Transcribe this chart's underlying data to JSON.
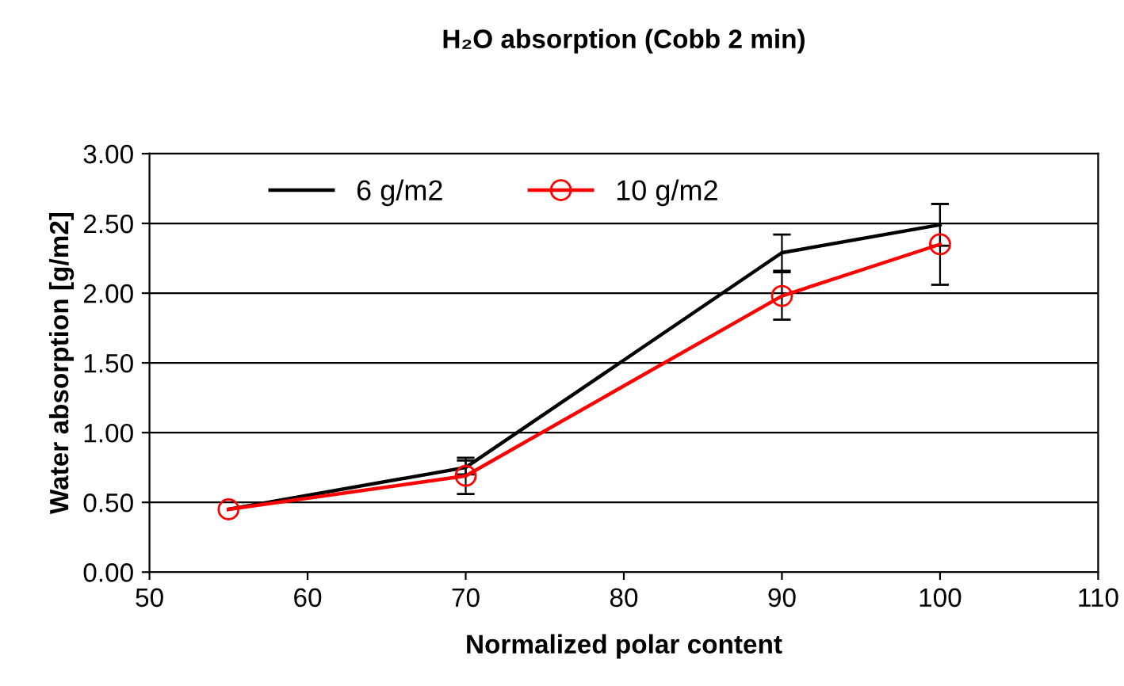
{
  "chart_data": {
    "type": "line",
    "title": "H₂O absorption (Cobb 2 min)",
    "xlabel": "Normalized polar content",
    "ylabel": "Water absorption [g/m2]",
    "x": [
      55,
      70,
      90,
      100
    ],
    "series": [
      {
        "name": "6 g/m2",
        "color": "#000000",
        "marker": "none",
        "values": [
          0.45,
          0.75,
          2.29,
          2.49
        ],
        "errors": [
          null,
          0.05,
          0.13,
          0.15
        ]
      },
      {
        "name": "10 g/m2",
        "color": "#ff0000",
        "marker": "circle",
        "values": [
          0.45,
          0.69,
          1.98,
          2.35
        ],
        "errors": [
          null,
          0.13,
          0.17,
          0.29
        ]
      }
    ],
    "xlim": [
      50,
      110
    ],
    "xticks": [
      50,
      60,
      70,
      80,
      90,
      100,
      110
    ],
    "ylim": [
      0,
      3
    ],
    "yticks": [
      {
        "value": 0,
        "label": "0.00"
      },
      {
        "value": 0.5,
        "label": "0.50"
      },
      {
        "value": 1,
        "label": "1.00"
      },
      {
        "value": 1.5,
        "label": "1.50"
      },
      {
        "value": 2,
        "label": "2.00"
      },
      {
        "value": 2.5,
        "label": "2.50"
      },
      {
        "value": 3,
        "label": "3.00"
      }
    ],
    "grid": "y",
    "legend": "top left"
  }
}
